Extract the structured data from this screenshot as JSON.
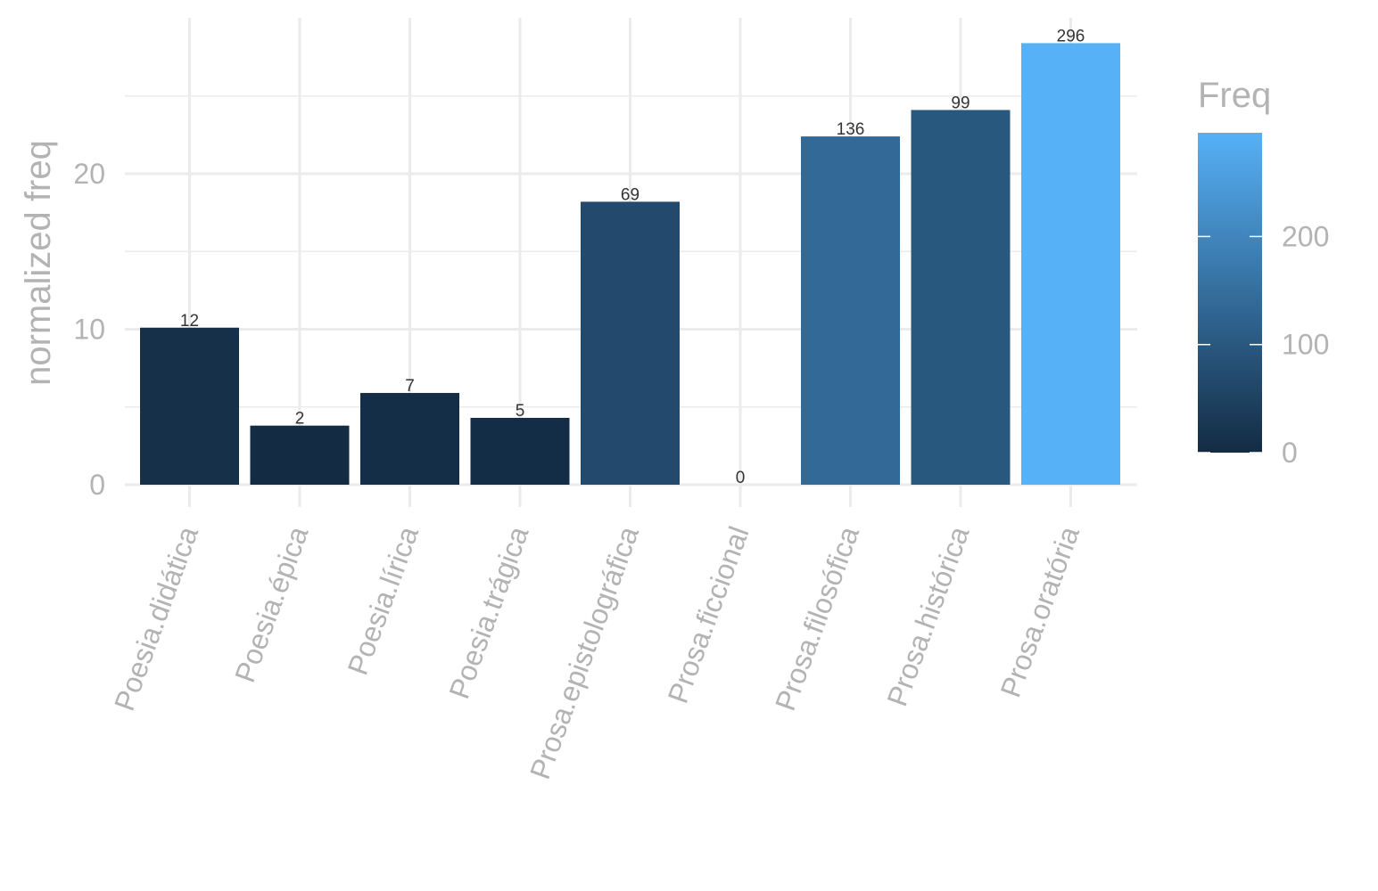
{
  "chart_data": {
    "type": "bar",
    "categories": [
      "Poesia.didática",
      "Poesia.épica",
      "Poesia.lírica",
      "Poesia.trágica",
      "Prosa.epistolográfica",
      "Prosa.ficcional",
      "Prosa.filosófica",
      "Prosa.histórica",
      "Prosa.oratória"
    ],
    "values": [
      10.1,
      3.8,
      5.9,
      4.3,
      18.2,
      0,
      22.4,
      24.1,
      28.4
    ],
    "freq": [
      12,
      2,
      7,
      5,
      69,
      0,
      136,
      99,
      296
    ],
    "bar_labels": [
      "12",
      "2",
      "7",
      "5",
      "69",
      "0",
      "136",
      "99",
      "296"
    ],
    "ylabel": "normalized freq",
    "xlabel": "",
    "ylim": [
      0,
      29.5
    ],
    "yticks": [
      0,
      10,
      20
    ],
    "ytick_labels": [
      "0",
      "10",
      "20"
    ],
    "grid": true,
    "legend": {
      "title": "Freq",
      "placement": "right",
      "type": "colorbar",
      "range": [
        0,
        296
      ],
      "ticks": [
        0,
        100,
        200
      ],
      "tick_labels": [
        "0",
        "100",
        "200"
      ],
      "color_low": "#132B43",
      "color_high": "#56B1F7"
    }
  }
}
